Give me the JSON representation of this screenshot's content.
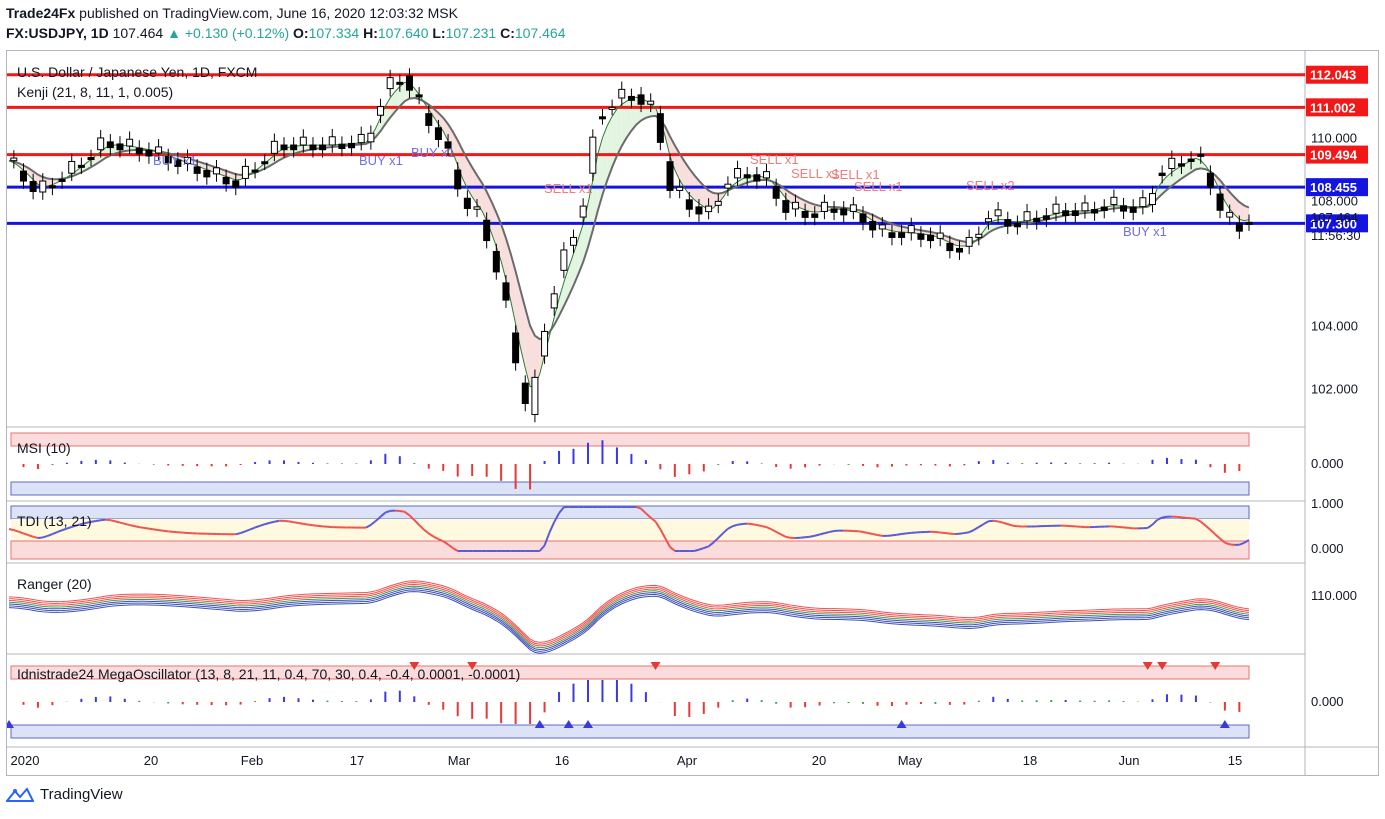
{
  "header": {
    "publisher": "Trade24Fx",
    "published_text": "published on TradingView.com, June 16, 2020 12:03:32 MSK",
    "symbol": "FX:USDJPY, 1D",
    "last": "107.464",
    "change": "▲ +0.130 (+0.12%)",
    "o_label": "O:",
    "o_value": "107.334",
    "h_label": "H:",
    "h_value": "107.640",
    "l_label": "L:",
    "l_value": "107.231",
    "c_label": "C:",
    "c_value": "107.464"
  },
  "main_pane": {
    "title": "U.S. Dollar / Japanese Yen, 1D, FXCM",
    "indicator": "Kenji (21, 8, 11, 1, 0.005)",
    "price_labels": [
      {
        "text": "112.043",
        "price": 112.043,
        "color": "#f21818"
      },
      {
        "text": "111.002",
        "price": 111.002,
        "color": "#f21818"
      },
      {
        "text": "109.494",
        "price": 109.494,
        "color": "#f21818"
      },
      {
        "text": "108.455",
        "price": 108.455,
        "color": "#1414e0"
      },
      {
        "text": "107.300",
        "price": 107.3,
        "color": "#1414e0"
      }
    ],
    "axis_ticks": [
      "110.000",
      "108.000",
      "104.000",
      "102.000"
    ],
    "current_price": "107.464",
    "countdown": "11:56:30",
    "signals": [
      {
        "text": "BUY x1",
        "color": "#6f6fe8",
        "dx": 152,
        "dy": 165
      },
      {
        "text": "BUY x1",
        "color": "#6f6fe8",
        "dx": 358,
        "dy": 165
      },
      {
        "text": "BUY x1",
        "color": "#6f6fe8",
        "dx": 410,
        "dy": 157
      },
      {
        "text": "SELL x1",
        "color": "#f07b7b",
        "dx": 543,
        "dy": 193
      },
      {
        "text": "SELL x1",
        "color": "#f07b7b",
        "dx": 749,
        "dy": 164
      },
      {
        "text": "SELL x1",
        "color": "#f07b7b",
        "dx": 790,
        "dy": 178
      },
      {
        "text": "SELL x1",
        "color": "#f07b7b",
        "dx": 830,
        "dy": 179
      },
      {
        "text": "SELL x1",
        "color": "#f07b7b",
        "dx": 853,
        "dy": 191
      },
      {
        "text": "SELL x2",
        "color": "#f07b7b",
        "dx": 965,
        "dy": 190
      },
      {
        "text": "BUY x1",
        "color": "#6f6fe8",
        "dx": 1122,
        "dy": 236
      }
    ]
  },
  "panes": {
    "msi": {
      "title": "MSI (10)",
      "tick": "0.000"
    },
    "tdi": {
      "title": "TDI (13, 21)",
      "ticks": [
        "1.000",
        "0.000"
      ]
    },
    "ranger": {
      "title": "Ranger (20)",
      "tick": "110.000"
    },
    "mega": {
      "title": "Idnistrade24 MegaOscillator (13, 8, 21, 11, 0.4, 70, 30, 0.4, -0.4, 0.0001, -0.0001)",
      "tick": "0.000"
    }
  },
  "time_axis": [
    "2020",
    "20",
    "Feb",
    "17",
    "Mar",
    "16",
    "Apr",
    "20",
    "May",
    "18",
    "Jun",
    "15"
  ],
  "footer": {
    "brand": "TradingView"
  },
  "chart_data": {
    "type": "candlestick",
    "title": "U.S. Dollar / Japanese Yen, 1D, FXCM",
    "symbol": "USDJPY",
    "timeframe": "1D",
    "x_range": [
      "2020-01-01",
      "2020-06-16"
    ],
    "y_range": [
      100.8,
      112.8
    ],
    "levels": [
      {
        "price": 112.043,
        "color": "#f21818",
        "style": "resistance"
      },
      {
        "price": 111.002,
        "color": "#f21818",
        "style": "resistance"
      },
      {
        "price": 109.494,
        "color": "#f21818",
        "style": "resistance"
      },
      {
        "price": 108.455,
        "color": "#1414e0",
        "style": "support"
      },
      {
        "price": 107.3,
        "color": "#1414e0",
        "style": "support"
      }
    ],
    "close_series": [
      {
        "x": 0,
        "y": 109.3
      },
      {
        "x": 6,
        "y": 108.3
      },
      {
        "x": 12,
        "y": 108.9
      },
      {
        "x": 20,
        "y": 109.9
      },
      {
        "x": 29,
        "y": 109.6
      },
      {
        "x": 38,
        "y": 109.1
      },
      {
        "x": 47,
        "y": 108.6
      },
      {
        "x": 56,
        "y": 109.8
      },
      {
        "x": 66,
        "y": 109.8
      },
      {
        "x": 74,
        "y": 109.9
      },
      {
        "x": 78,
        "y": 111.6
      },
      {
        "x": 82,
        "y": 112.0
      },
      {
        "x": 86,
        "y": 110.8
      },
      {
        "x": 90,
        "y": 109.9
      },
      {
        "x": 94,
        "y": 108.1
      },
      {
        "x": 98,
        "y": 107.4
      },
      {
        "x": 102,
        "y": 105.4
      },
      {
        "x": 106,
        "y": 102.2
      },
      {
        "x": 108,
        "y": 101.2
      },
      {
        "x": 111,
        "y": 104.0
      },
      {
        "x": 114,
        "y": 105.8
      },
      {
        "x": 117,
        "y": 107.0
      },
      {
        "x": 119,
        "y": 108.0
      },
      {
        "x": 122,
        "y": 110.7
      },
      {
        "x": 126,
        "y": 111.3
      },
      {
        "x": 130,
        "y": 111.4
      },
      {
        "x": 134,
        "y": 110.8
      },
      {
        "x": 137,
        "y": 108.5
      },
      {
        "x": 141,
        "y": 107.9
      },
      {
        "x": 145,
        "y": 107.6
      },
      {
        "x": 149,
        "y": 108.7
      },
      {
        "x": 153,
        "y": 108.9
      },
      {
        "x": 157,
        "y": 108.7
      },
      {
        "x": 161,
        "y": 107.8
      },
      {
        "x": 166,
        "y": 107.6
      },
      {
        "x": 171,
        "y": 107.8
      },
      {
        "x": 176,
        "y": 107.6
      },
      {
        "x": 181,
        "y": 107.0
      },
      {
        "x": 186,
        "y": 107.0
      },
      {
        "x": 191,
        "y": 106.9
      },
      {
        "x": 196,
        "y": 106.5
      },
      {
        "x": 199,
        "y": 106.6
      },
      {
        "x": 203,
        "y": 107.6
      },
      {
        "x": 208,
        "y": 107.3
      },
      {
        "x": 213,
        "y": 107.5
      },
      {
        "x": 218,
        "y": 107.7
      },
      {
        "x": 223,
        "y": 107.7
      },
      {
        "x": 228,
        "y": 107.9
      },
      {
        "x": 233,
        "y": 107.8
      },
      {
        "x": 236,
        "y": 107.9
      },
      {
        "x": 238,
        "y": 108.9
      },
      {
        "x": 242,
        "y": 109.2
      },
      {
        "x": 246,
        "y": 109.5
      },
      {
        "x": 249,
        "y": 108.6
      },
      {
        "x": 252,
        "y": 107.5
      },
      {
        "x": 255,
        "y": 107.2
      },
      {
        "x": 257,
        "y": 107.46
      }
    ]
  }
}
